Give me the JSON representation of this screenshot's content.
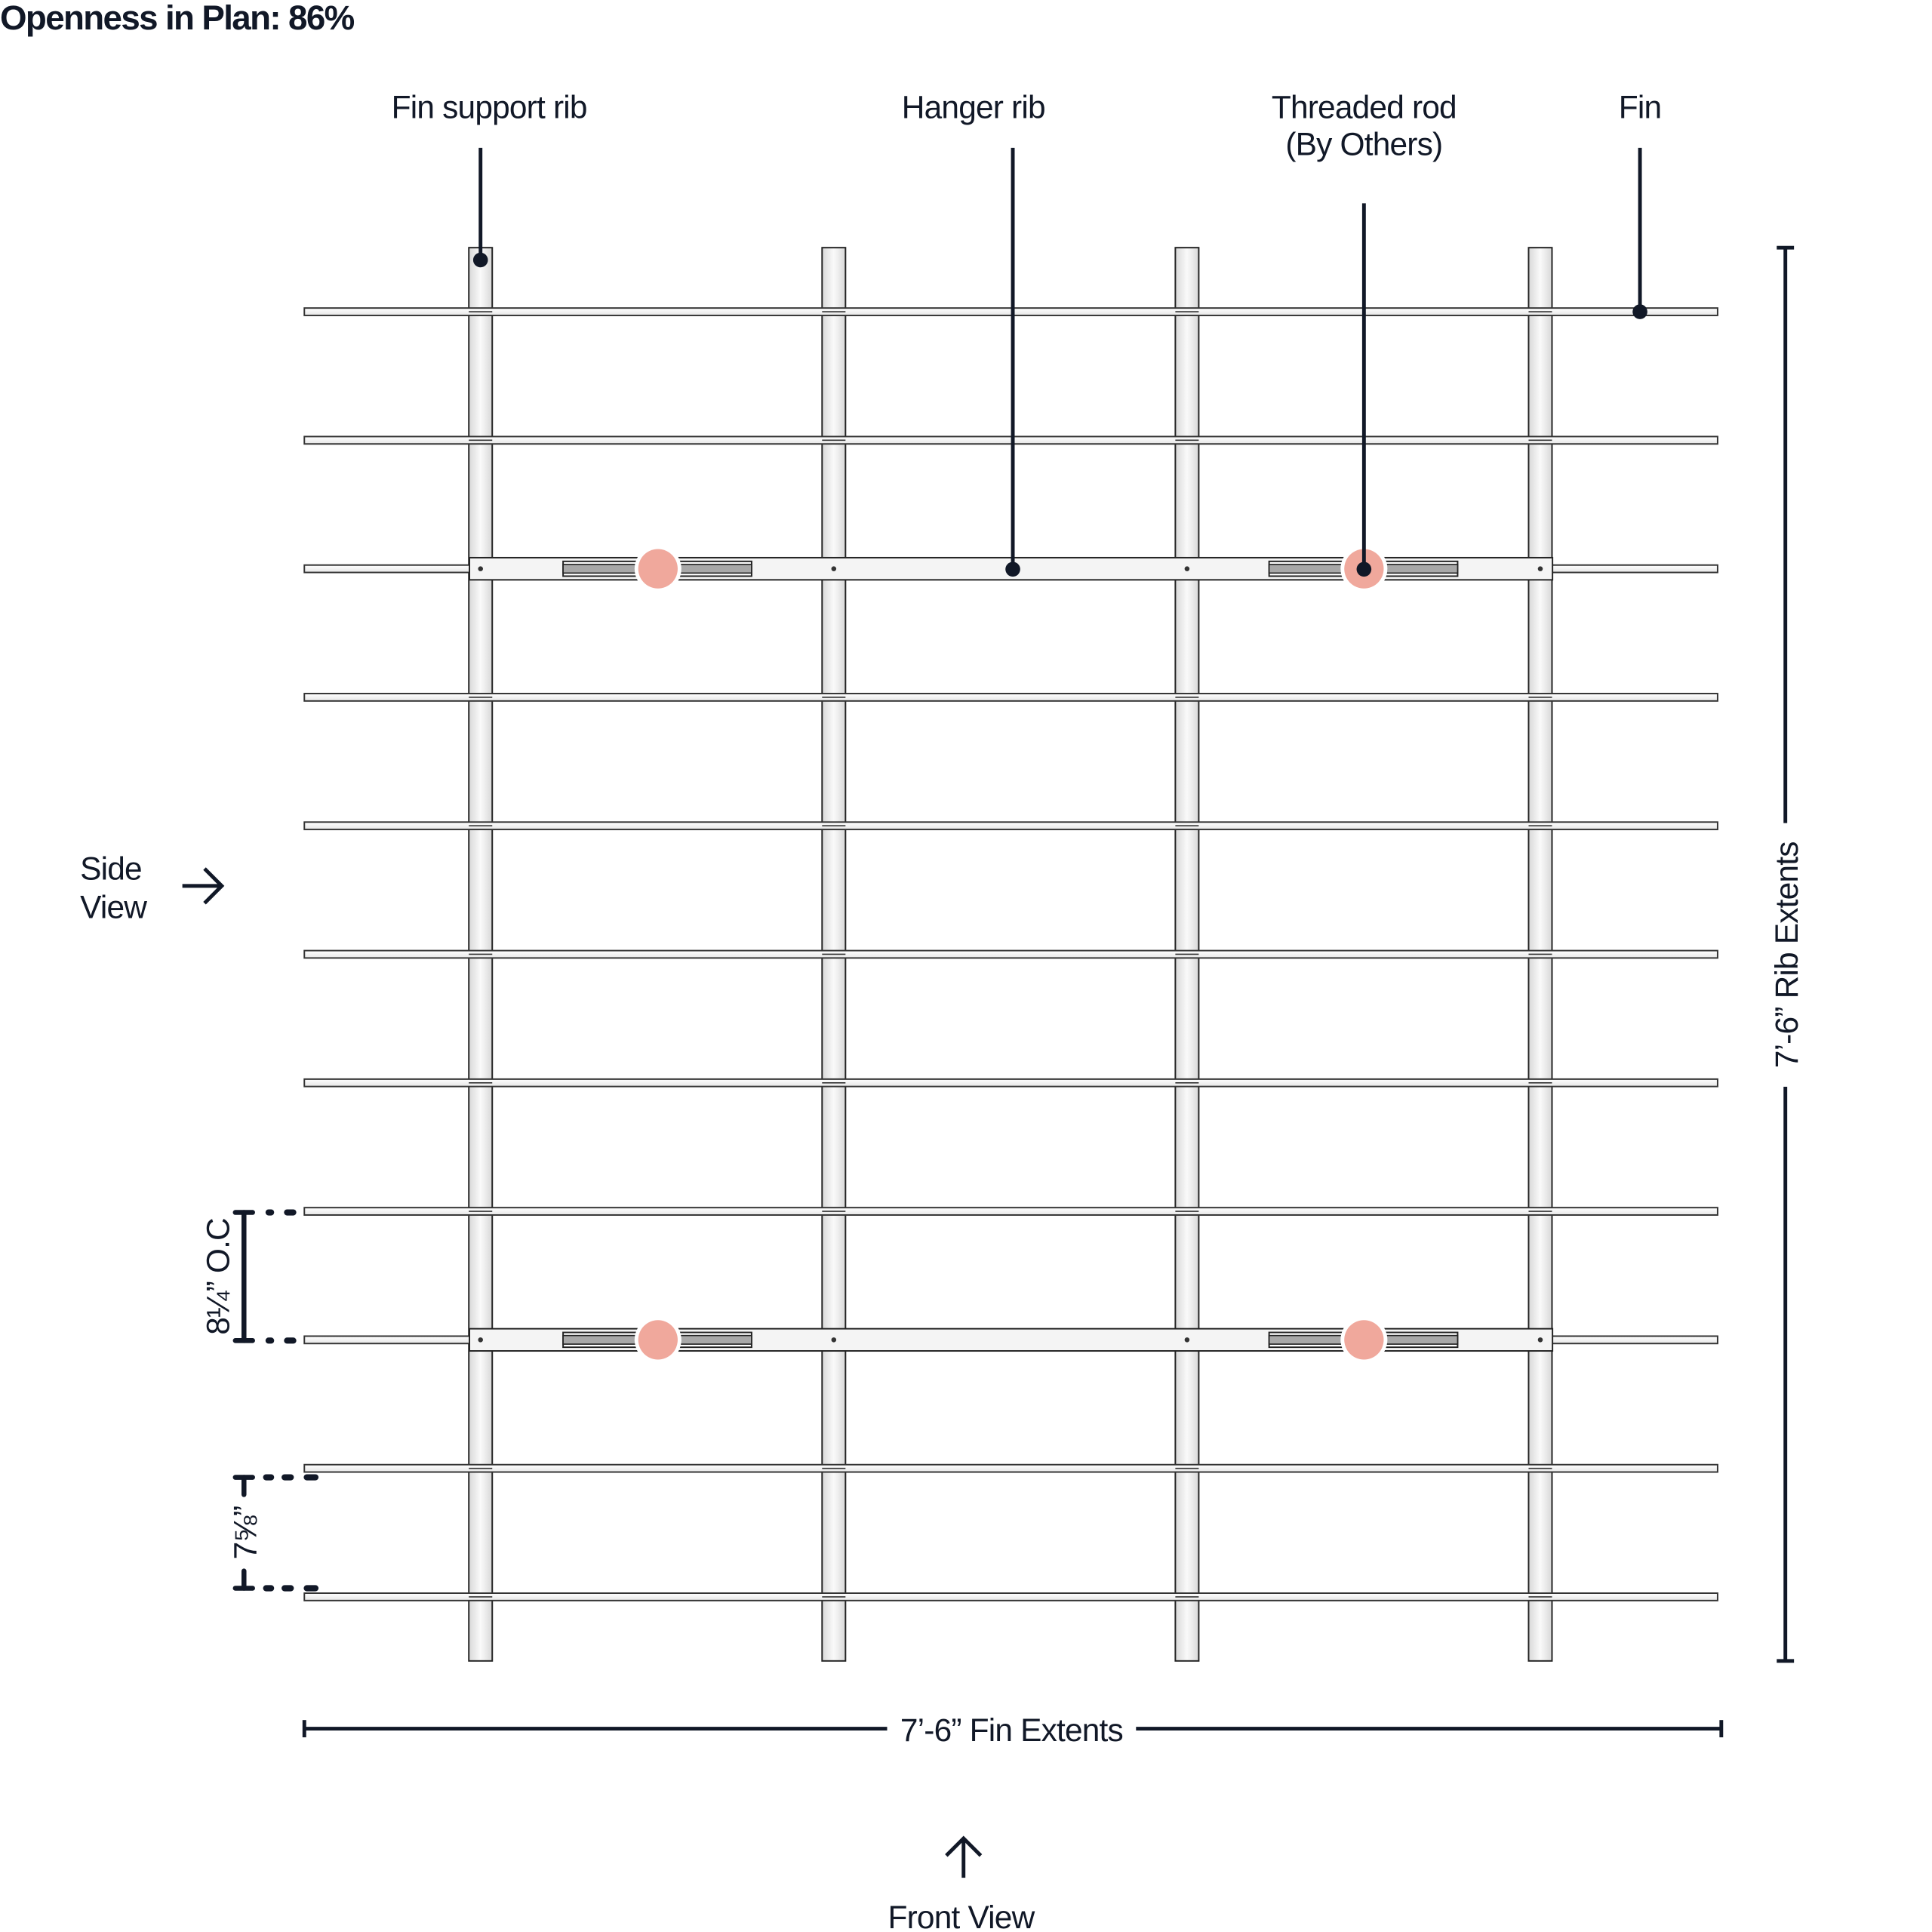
{
  "title": "Openness in Plan: 86%",
  "callouts": {
    "fin_support_rib": "Fin support rib",
    "hanger_rib": "Hanger rib",
    "threaded_rod_line1": "Threaded rod",
    "threaded_rod_line2": "(By Others)",
    "fin": "Fin"
  },
  "views": {
    "side_line1": "Side",
    "side_line2": "View",
    "front": "Front View"
  },
  "dimensions": {
    "rib_extents": "7’-6” Rib Extents",
    "fin_extents": "7’-6” Fin Extents",
    "rib_spacing": "8¼” O.C",
    "fin_spacing": "7⅝”"
  },
  "colors": {
    "ink": "#111827",
    "rod": "#f0a89c",
    "insert": "#a8a8a8"
  },
  "structure": {
    "fin_count": 11,
    "rib_count": 4,
    "hanger_rib_count": 2,
    "threaded_rod_count": 4
  }
}
